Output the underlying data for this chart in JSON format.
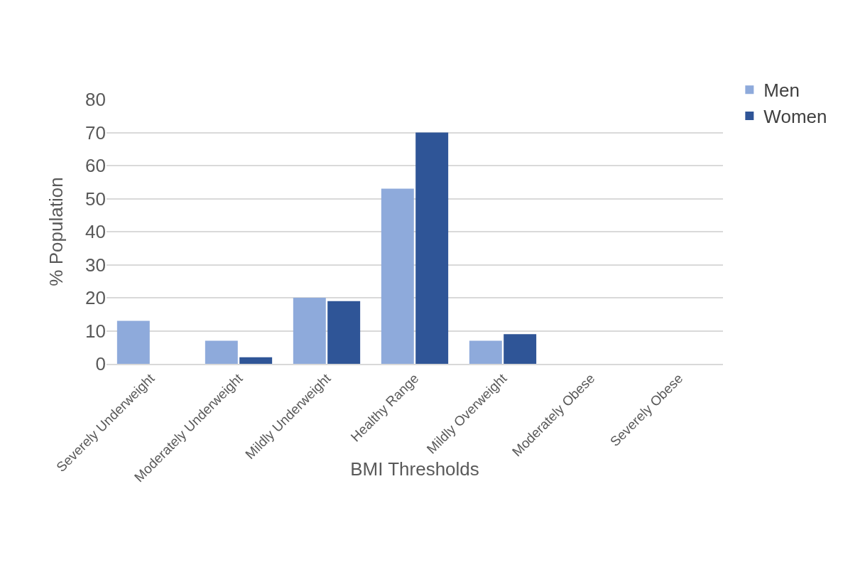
{
  "chart_data": {
    "type": "bar",
    "xlabel": "BMI Thresholds",
    "ylabel": "% Population",
    "categories": [
      "Severely Underweight",
      "Moderately Underweight",
      "Mildly Underweight",
      "Healthy Range",
      "Mildly Overweight",
      "Moderately Obese",
      "Severely Obese"
    ],
    "series": [
      {
        "name": "Men",
        "color": "#8eaadb",
        "values": [
          13,
          7,
          20,
          53,
          7,
          0,
          0
        ]
      },
      {
        "name": "Women",
        "color": "#2f5597",
        "values": [
          0,
          2,
          19,
          70,
          9,
          0,
          0
        ]
      }
    ],
    "ylim": [
      0,
      80
    ],
    "yticks": [
      0,
      10,
      20,
      30,
      40,
      50,
      60,
      70,
      80
    ],
    "grid": "y",
    "legend": "top right"
  }
}
